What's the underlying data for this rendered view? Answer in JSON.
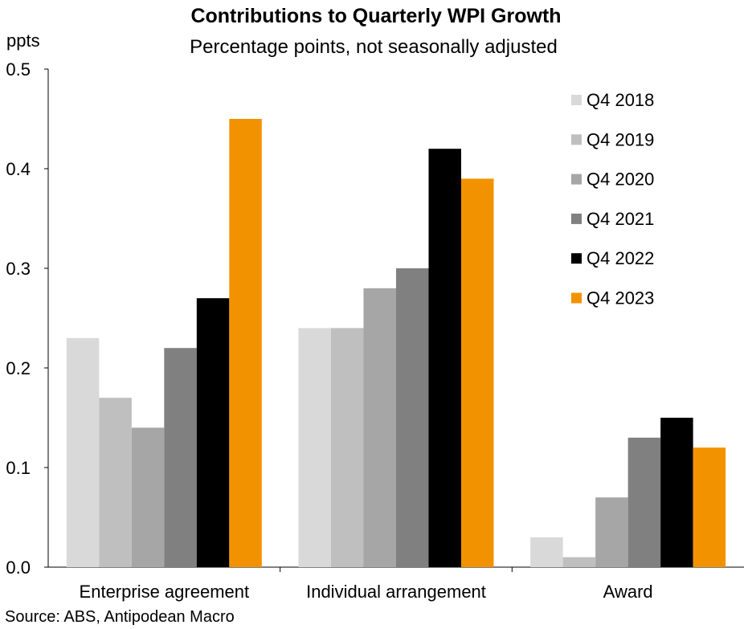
{
  "chart_data": {
    "type": "bar",
    "title": "Contributions to Quarterly WPI Growth",
    "subtitle": "Percentage points, not seasonally adjusted",
    "ylabel": "ppts",
    "xlabel": "",
    "ylim": [
      0,
      0.5
    ],
    "yticks": [
      "0.0",
      "0.1",
      "0.2",
      "0.3",
      "0.4",
      "0.5"
    ],
    "grid": false,
    "legend_position": "top-right",
    "categories": [
      "Enterprise agreement",
      "Individual arrangement",
      "Award"
    ],
    "series": [
      {
        "name": "Q4 2018",
        "color": "#d9d9d9",
        "values": [
          0.23,
          0.24,
          0.03
        ]
      },
      {
        "name": "Q4 2019",
        "color": "#bfbfbf",
        "values": [
          0.17,
          0.24,
          0.01
        ]
      },
      {
        "name": "Q4 2020",
        "color": "#a6a6a6",
        "values": [
          0.14,
          0.28,
          0.07
        ]
      },
      {
        "name": "Q4 2021",
        "color": "#808080",
        "values": [
          0.22,
          0.3,
          0.13
        ]
      },
      {
        "name": "Q4 2022",
        "color": "#000000",
        "values": [
          0.27,
          0.42,
          0.15
        ]
      },
      {
        "name": "Q4 2023",
        "color": "#f39200",
        "values": [
          0.45,
          0.39,
          0.12
        ]
      }
    ],
    "source": "Source: ABS, Antipodean Macro"
  }
}
